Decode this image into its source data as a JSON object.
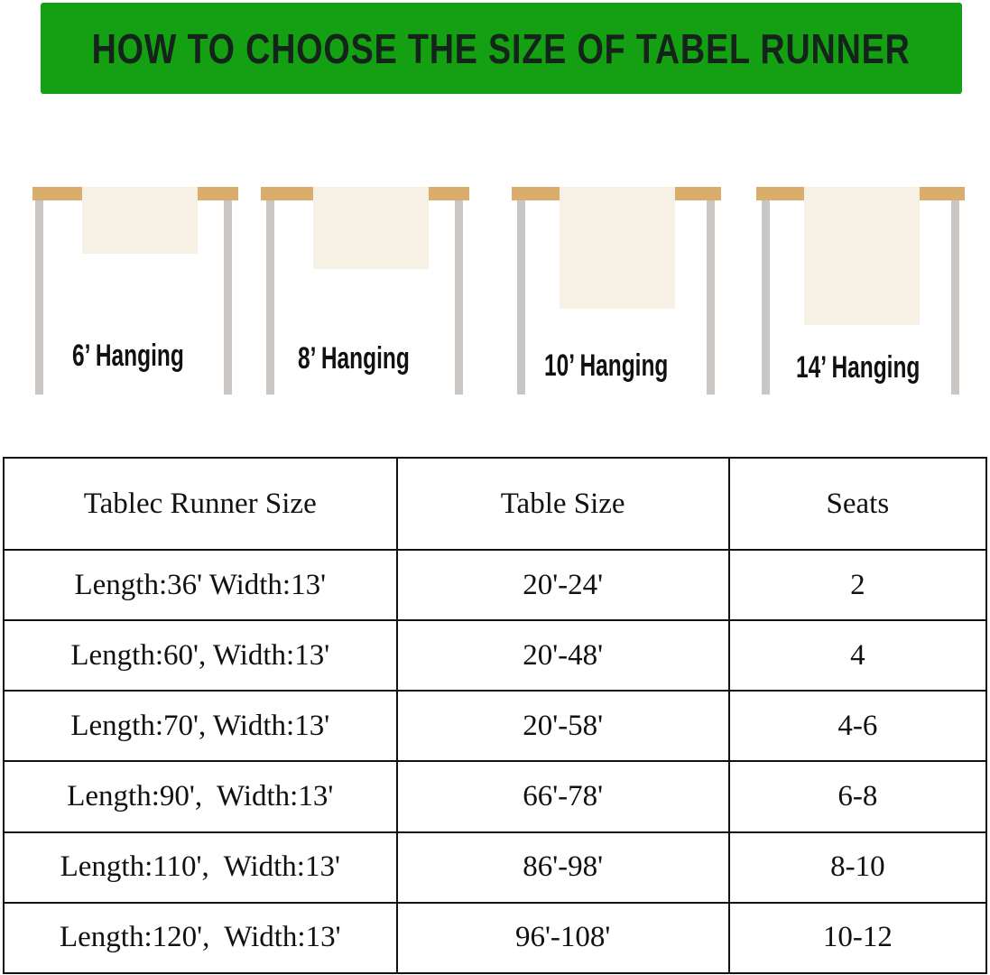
{
  "header": {
    "title": "HOW TO CHOOSE THE SIZE OF TABEL RUNNER",
    "background_color": "#14a012"
  },
  "illustrations": [
    {
      "label": "6’ Hanging"
    },
    {
      "label": "8’ Hanging"
    },
    {
      "label": "10’ Hanging"
    },
    {
      "label": "14’ Hanging"
    }
  ],
  "size_table": {
    "columns": [
      "Tablec Runner Size",
      "Table Size",
      "Seats"
    ],
    "rows": [
      [
        "Length:36' Width:13'",
        "20'-24'",
        "2"
      ],
      [
        "Length:60', Width:13'",
        "20'-48'",
        "4"
      ],
      [
        "Length:70', Width:13'",
        "20'-58'",
        "4-6"
      ],
      [
        "Length:90',  Width:13'",
        "66'-78'",
        "6-8"
      ],
      [
        "Length:110',  Width:13'",
        "86'-98'",
        "8-10"
      ],
      [
        "Length:120',  Width:13'",
        "96'-108'",
        "10-12"
      ]
    ]
  }
}
